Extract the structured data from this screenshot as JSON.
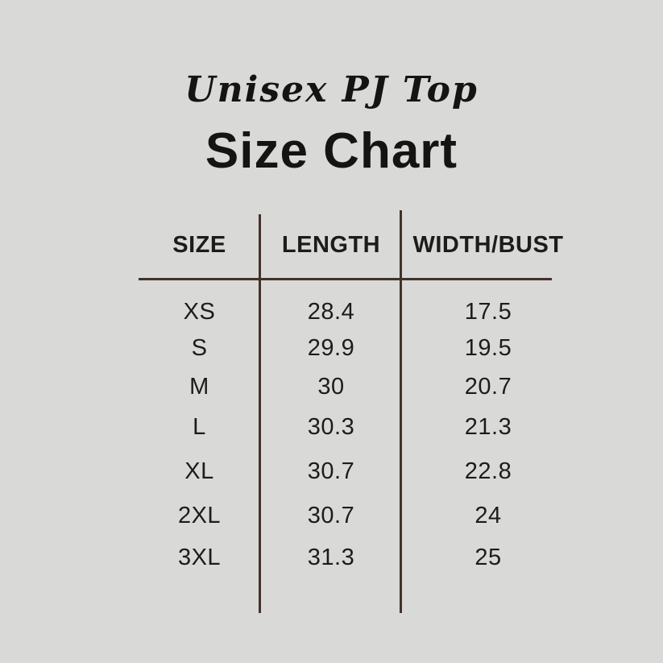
{
  "header": {
    "subtitle": "Unisex PJ Top",
    "title": "Size Chart"
  },
  "table": {
    "columns": [
      "SIZE",
      "LENGTH",
      "WIDTH/BUST"
    ],
    "rows": [
      {
        "size": "XS",
        "length": "28.4",
        "width_bust": "17.5"
      },
      {
        "size": "S",
        "length": "29.9",
        "width_bust": "19.5"
      },
      {
        "size": "M",
        "length": "30",
        "width_bust": "20.7"
      },
      {
        "size": "L",
        "length": "30.3",
        "width_bust": "21.3"
      },
      {
        "size": "XL",
        "length": "30.7",
        "width_bust": "22.8"
      },
      {
        "size": "2XL",
        "length": "30.7",
        "width_bust": "24"
      },
      {
        "size": "3XL",
        "length": "31.3",
        "width_bust": "25"
      }
    ]
  },
  "colors": {
    "background": "#d9d9d8",
    "rule_line": "#42322a",
    "text": "#1d1c1a"
  },
  "chart_data": {
    "type": "table",
    "title": "Size Chart",
    "subtitle": "Unisex PJ Top",
    "columns": [
      "SIZE",
      "LENGTH",
      "WIDTH/BUST"
    ],
    "rows": [
      [
        "XS",
        28.4,
        17.5
      ],
      [
        "S",
        29.9,
        19.5
      ],
      [
        "M",
        30,
        20.7
      ],
      [
        "L",
        30.3,
        21.3
      ],
      [
        "XL",
        30.7,
        22.8
      ],
      [
        "2XL",
        30.7,
        24
      ],
      [
        "3XL",
        31.3,
        25
      ]
    ]
  }
}
